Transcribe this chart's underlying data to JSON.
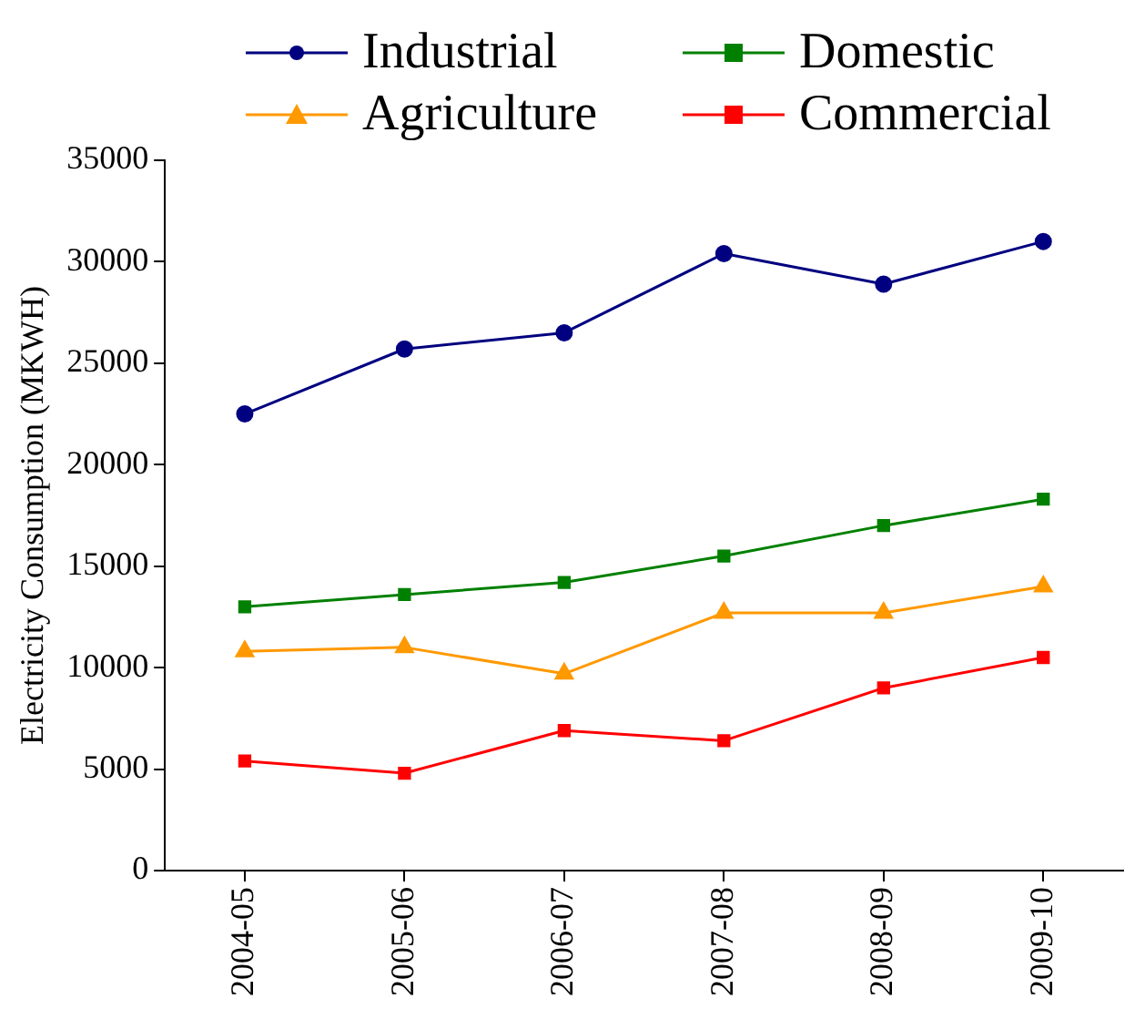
{
  "chart_data": {
    "type": "line",
    "ylabel": "Electricity Consumption (MKWH)",
    "categories": [
      "2004-05",
      "2005-06",
      "2006-07",
      "2007-08",
      "2008-09",
      "2009-10"
    ],
    "ylim": [
      0,
      35000
    ],
    "yticks": [
      0,
      5000,
      10000,
      15000,
      20000,
      25000,
      30000,
      35000
    ],
    "grid": false,
    "legend": "top",
    "line_style": "solid",
    "series": [
      {
        "name": "Industrial",
        "color": "#000080",
        "marker": "circle",
        "values": [
          22500,
          25700,
          26500,
          30400,
          28900,
          31000
        ]
      },
      {
        "name": "Domestic",
        "color": "#008000",
        "marker": "square",
        "values": [
          13000,
          13600,
          14200,
          15500,
          17000,
          18300
        ]
      },
      {
        "name": "Agriculture",
        "color": "#ff9900",
        "marker": "triangle",
        "values": [
          10800,
          11000,
          9700,
          12700,
          12700,
          14000
        ]
      },
      {
        "name": "Commercial",
        "color": "#ff0000",
        "marker": "square",
        "values": [
          5400,
          4800,
          6900,
          6400,
          9000,
          10500
        ]
      }
    ]
  }
}
